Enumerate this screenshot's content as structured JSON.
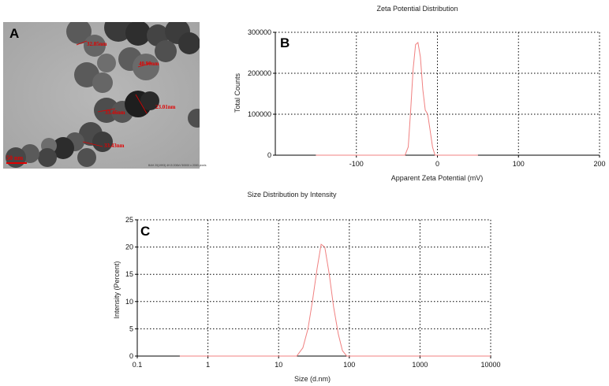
{
  "panels": {
    "a": {
      "letter": "A",
      "particle_labels": [
        "32.85nm",
        "40.90nm",
        "23.01nm",
        "33.46nm",
        "33.43nm"
      ],
      "scale_bar_label": "50 nm",
      "footer_text": "BAH 20(1993) 4H.5 200kV 50000 x 2000 pixels"
    },
    "b": {
      "letter": "B"
    },
    "c": {
      "letter": "C"
    }
  },
  "colors": {
    "curve": "#f08080",
    "axis": "#000000",
    "grid": "#000000",
    "label_red": "#e00000"
  },
  "chart_data": [
    {
      "id": "zeta",
      "type": "line",
      "title": "Zeta Potential Distribution",
      "xlabel": "Apparent Zeta Potential (mV)",
      "ylabel": "Total Counts",
      "xlim": [
        -200,
        200
      ],
      "ylim": [
        0,
        300000
      ],
      "xticks": [
        -100,
        0,
        100,
        200
      ],
      "yticks": [
        0,
        100000,
        200000,
        300000
      ],
      "ytick_labels": [
        "0",
        "100000",
        "200000",
        "300000"
      ],
      "grid": true,
      "series": [
        {
          "x": [
            -150,
            -40,
            -36,
            -33,
            -30,
            -27,
            -24,
            -21,
            -18,
            -15,
            -12,
            -9,
            -6,
            -3,
            0,
            50
          ],
          "y": [
            0,
            0,
            20000,
            110000,
            210000,
            270000,
            275000,
            240000,
            160000,
            110000,
            100000,
            60000,
            20000,
            0,
            0,
            0
          ]
        }
      ]
    },
    {
      "id": "size",
      "type": "line",
      "title": "Size Distribution by Intensity",
      "xlabel": "Size (d.nm)",
      "ylabel": "Intensity (Percent)",
      "xscale": "log",
      "xlim": [
        0.1,
        10000
      ],
      "ylim": [
        0,
        25
      ],
      "xticks": [
        0.1,
        1,
        10,
        100,
        1000,
        10000
      ],
      "xtick_labels": [
        "0.1",
        "1",
        "10",
        "100",
        "1000",
        "10000"
      ],
      "yticks": [
        0,
        5,
        10,
        15,
        20,
        25
      ],
      "ytick_labels": [
        "0",
        "5",
        "10",
        "15",
        "20",
        "25"
      ],
      "grid": true,
      "series": [
        {
          "x": [
            0.4,
            18,
            22,
            26,
            30,
            35,
            40,
            45,
            52,
            60,
            70,
            80,
            92,
            10000
          ],
          "y": [
            0,
            0,
            1.5,
            5,
            10,
            16,
            20.5,
            20,
            15,
            9,
            4,
            1,
            0,
            0
          ]
        }
      ]
    }
  ]
}
